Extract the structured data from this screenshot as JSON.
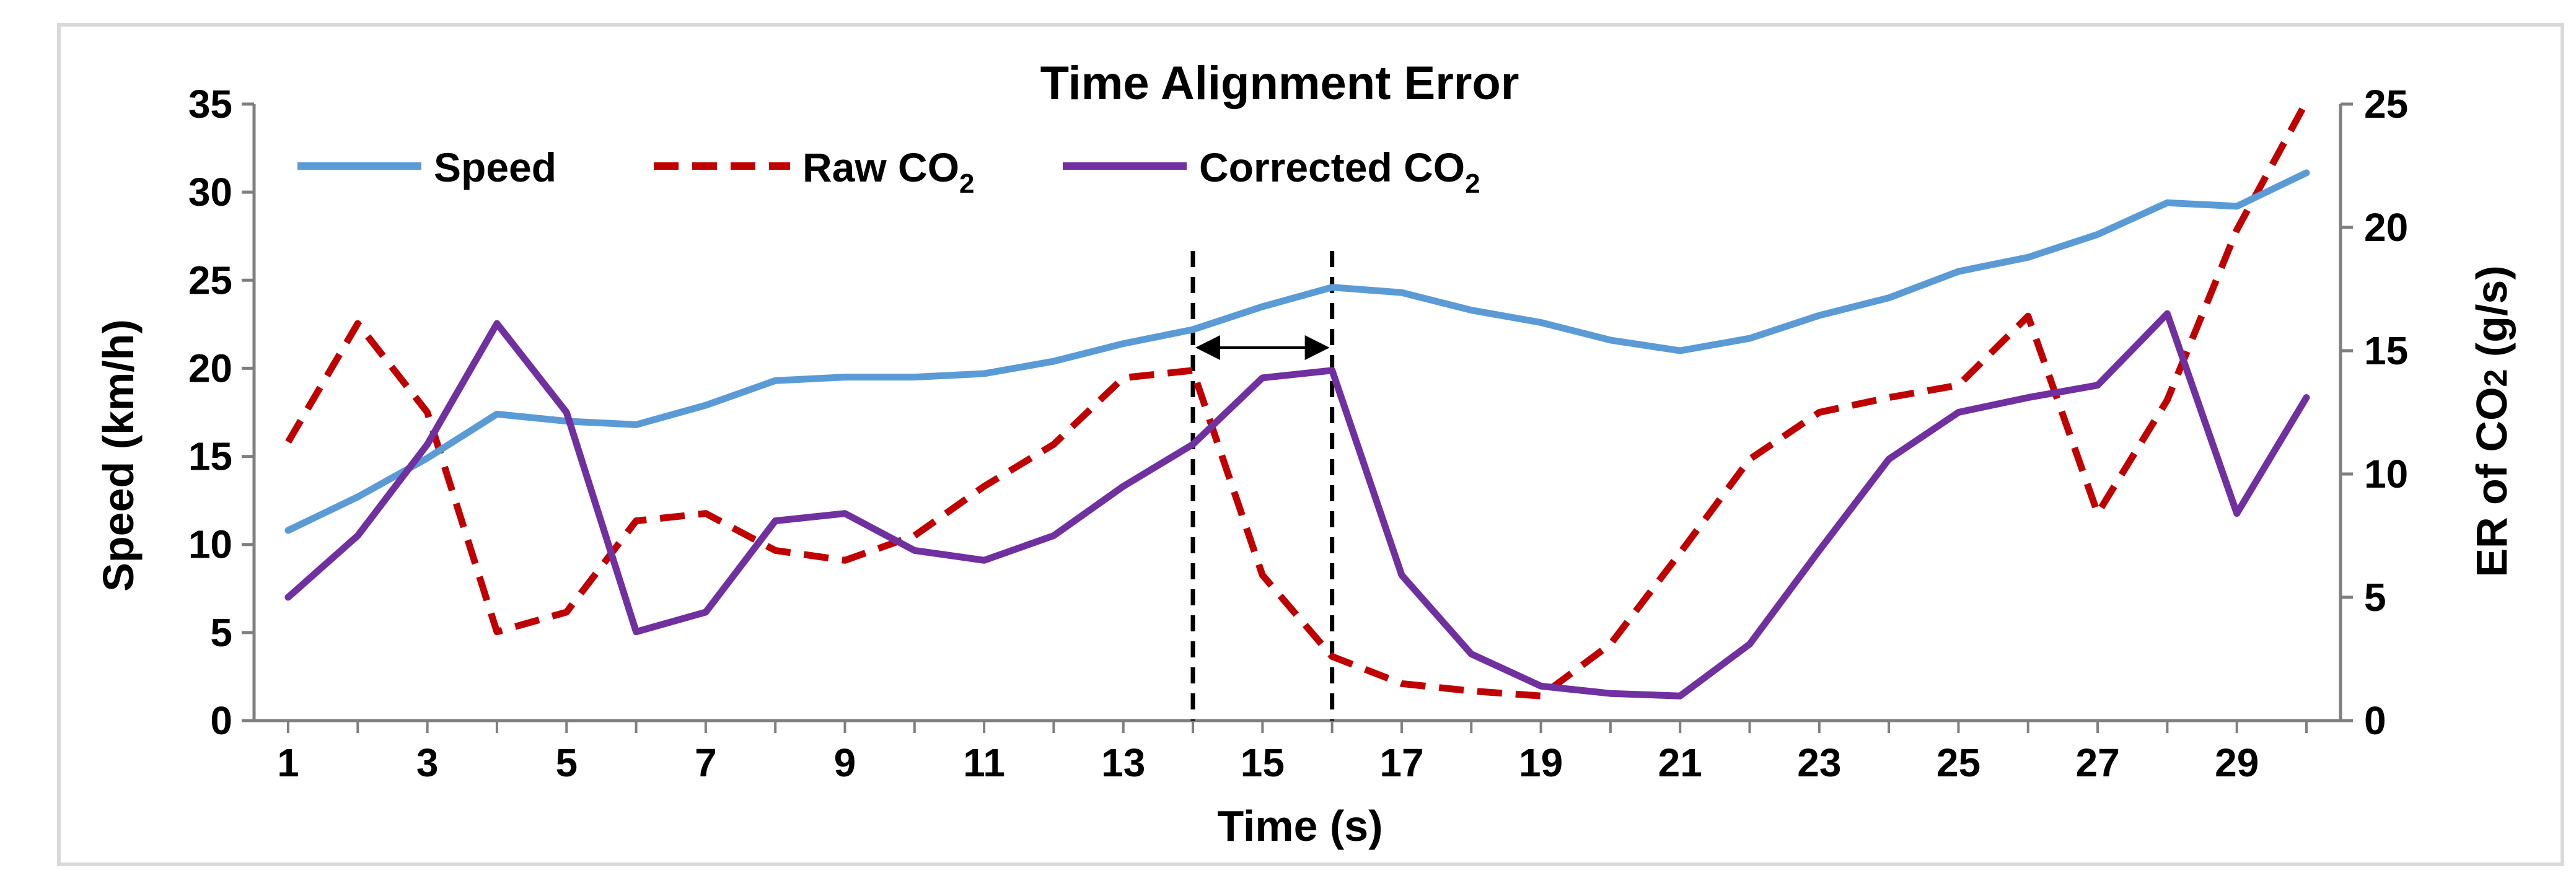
{
  "chart_data": {
    "type": "line",
    "title": "Time Alignment Error",
    "xlabel": "Time (s)",
    "ylabel_left": "Speed (km/h)",
    "ylabel_right_prefix": "ER of CO",
    "ylabel_right_sub": "2",
    "ylabel_right_suffix": " (g/s)",
    "x": [
      1,
      2,
      3,
      4,
      5,
      6,
      7,
      8,
      9,
      10,
      11,
      12,
      13,
      14,
      15,
      16,
      17,
      18,
      19,
      20,
      21,
      22,
      23,
      24,
      25,
      26,
      27,
      28,
      29,
      30
    ],
    "x_tick_labels": [
      "1",
      "3",
      "5",
      "7",
      "9",
      "11",
      "13",
      "15",
      "17",
      "19",
      "21",
      "23",
      "25",
      "27",
      "29"
    ],
    "x_tick_values": [
      1,
      3,
      5,
      7,
      9,
      11,
      13,
      15,
      17,
      19,
      21,
      23,
      25,
      27,
      29
    ],
    "ylim_left": [
      0,
      35
    ],
    "left_ticks": [
      "0",
      "5",
      "10",
      "15",
      "20",
      "25",
      "30",
      "35"
    ],
    "ylim_right": [
      0,
      25
    ],
    "right_ticks": [
      "0",
      "5",
      "10",
      "15",
      "20",
      "25"
    ],
    "grid": "horizontal",
    "legend_position": "top-left",
    "series": [
      {
        "name": "Speed",
        "axis": "left",
        "color": "#5B9BD5",
        "dash": "solid",
        "values": [
          10.8,
          12.7,
          14.9,
          17.4,
          17.0,
          16.8,
          17.9,
          19.3,
          19.5,
          19.5,
          19.7,
          20.4,
          21.4,
          22.2,
          23.5,
          24.6,
          24.3,
          23.3,
          22.6,
          21.6,
          21.0,
          21.7,
          23.0,
          24.0,
          25.5,
          26.3,
          27.6,
          29.4,
          29.2,
          31.1
        ]
      },
      {
        "name_prefix": "Raw CO",
        "name_sub": "2",
        "axis": "right",
        "color": "#C00000",
        "dash": "dashed",
        "values": [
          11.3,
          16.1,
          12.5,
          3.6,
          4.4,
          8.1,
          8.4,
          6.9,
          6.5,
          7.5,
          9.5,
          11.2,
          13.9,
          14.2,
          5.9,
          2.6,
          1.5,
          1.2,
          1.0,
          3.1,
          6.8,
          10.6,
          12.5,
          13.1,
          13.6,
          16.4,
          8.4,
          13.0,
          19.9,
          25.1
        ]
      },
      {
        "name_prefix": "Corrected CO",
        "name_sub": "2",
        "axis": "right",
        "color": "#7030A0",
        "dash": "solid",
        "values": [
          5.0,
          7.5,
          11.2,
          16.1,
          12.5,
          3.6,
          4.4,
          8.1,
          8.4,
          6.9,
          6.5,
          7.5,
          9.5,
          11.2,
          13.9,
          14.2,
          5.9,
          2.7,
          1.4,
          1.1,
          1.0,
          3.1,
          6.9,
          10.6,
          12.5,
          13.1,
          13.6,
          16.5,
          8.4,
          13.1
        ]
      }
    ],
    "annotations": {
      "vertical_lines_x": [
        14,
        16
      ],
      "double_arrow": {
        "from_x": 14,
        "to_x": 16,
        "at_speed": 22.3
      }
    }
  }
}
